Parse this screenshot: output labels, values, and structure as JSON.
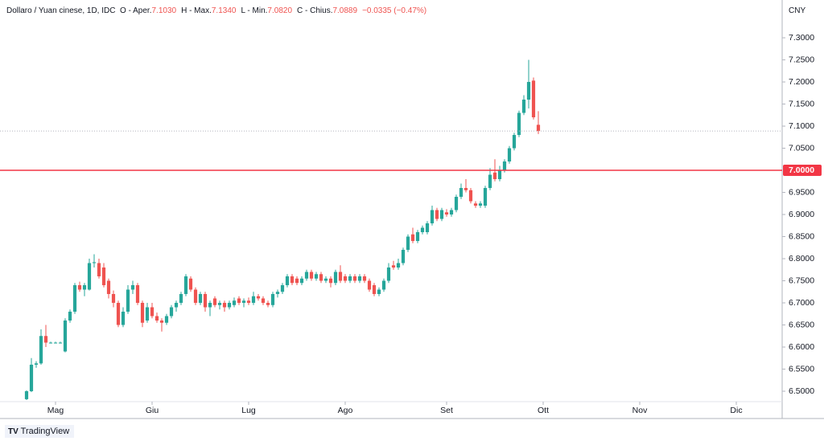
{
  "header": {
    "symbol": "Dollaro / Yuan cinese, 1D, IDC",
    "open_label": "O - Aper.",
    "open_value": "7.1030",
    "high_label": "H - Max.",
    "high_value": "7.1340",
    "low_label": "L - Min.",
    "low_value": "7.0820",
    "close_label": "C - Chius.",
    "close_value": "7.0889",
    "change": "−0.0335 (−0.47%)"
  },
  "currency": "CNY",
  "brand": "TradingView",
  "chart_data": {
    "type": "candlestick",
    "up_color": "#26a69a",
    "down_color": "#ef5350",
    "xlim": [
      -5.5,
      156.5
    ],
    "xticks": [
      {
        "value": 6,
        "label": "Mag"
      },
      {
        "value": 26,
        "label": "Giu"
      },
      {
        "value": 46,
        "label": "Lug"
      },
      {
        "value": 66,
        "label": "Ago"
      },
      {
        "value": 87,
        "label": "Set"
      },
      {
        "value": 107,
        "label": "Ott"
      },
      {
        "value": 127,
        "label": "Nov"
      },
      {
        "value": 147,
        "label": "Dic"
      }
    ],
    "ylim": [
      6.4764,
      7.3855
    ],
    "yticks": [
      {
        "value": 6.5,
        "label": "6.5000"
      },
      {
        "value": 6.55,
        "label": "6.5500"
      },
      {
        "value": 6.6,
        "label": "6.6000"
      },
      {
        "value": 6.65,
        "label": "6.6500"
      },
      {
        "value": 6.7,
        "label": "6.7000"
      },
      {
        "value": 6.75,
        "label": "6.7500"
      },
      {
        "value": 6.8,
        "label": "6.8000"
      },
      {
        "value": 6.85,
        "label": "6.8500"
      },
      {
        "value": 6.9,
        "label": "6.9000"
      },
      {
        "value": 6.95,
        "label": "6.9500"
      },
      {
        "value": 7.05,
        "label": "7.0500"
      },
      {
        "value": 7.1,
        "label": "7.1000"
      },
      {
        "value": 7.15,
        "label": "7.1500"
      },
      {
        "value": 7.2,
        "label": "7.2000"
      },
      {
        "value": 7.25,
        "label": "7.2500"
      },
      {
        "value": 7.3,
        "label": "7.3000"
      }
    ],
    "hline": {
      "value": 7.0,
      "label": "7.0000",
      "color": "#f23645"
    },
    "open": [
      6.482,
      6.5,
      6.56,
      6.563,
      6.625,
      6.61,
      6.61,
      6.61,
      6.59,
      6.66,
      6.68,
      6.74,
      6.73,
      6.73,
      6.79,
      6.79,
      6.78,
      6.75,
      6.72,
      6.7,
      6.65,
      6.68,
      6.73,
      6.74,
      6.7,
      6.66,
      6.69,
      6.67,
      6.66,
      6.655,
      6.67,
      6.69,
      6.7,
      6.72,
      6.755,
      6.73,
      6.7,
      6.72,
      6.69,
      6.71,
      6.695,
      6.7,
      6.69,
      6.695,
      6.71,
      6.7,
      6.705,
      6.7,
      6.715,
      6.71,
      6.7,
      6.695,
      6.72,
      6.725,
      6.74,
      6.76,
      6.755,
      6.745,
      6.755,
      6.77,
      6.755,
      6.765,
      6.75,
      6.755,
      6.745,
      6.77,
      6.76,
      6.75,
      6.76,
      6.75,
      6.76,
      6.75,
      6.74,
      6.72,
      6.73,
      6.75,
      6.785,
      6.78,
      6.79,
      6.82,
      6.855,
      6.84,
      6.86,
      6.86,
      6.88,
      6.91,
      6.89,
      6.905,
      6.9,
      6.91,
      6.94,
      6.96,
      6.955,
      6.925,
      6.92,
      6.92,
      6.96,
      6.995,
      6.98,
      7.0,
      7.02,
      7.05,
      7.08,
      7.13,
      7.16,
      7.203,
      7.103
    ],
    "high": [
      6.502,
      6.575,
      6.568,
      6.64,
      6.65,
      6.612,
      6.612,
      6.612,
      6.665,
      6.685,
      6.745,
      6.748,
      6.745,
      6.8,
      6.81,
      6.8,
      6.79,
      6.755,
      6.728,
      6.705,
      6.69,
      6.74,
      6.75,
      6.745,
      6.705,
      6.7,
      6.7,
      6.678,
      6.665,
      6.675,
      6.695,
      6.705,
      6.725,
      6.765,
      6.76,
      6.735,
      6.725,
      6.725,
      6.705,
      6.715,
      6.705,
      6.705,
      6.705,
      6.712,
      6.715,
      6.71,
      6.712,
      6.725,
      6.72,
      6.715,
      6.705,
      6.725,
      6.73,
      6.745,
      6.765,
      6.765,
      6.76,
      6.76,
      6.775,
      6.775,
      6.77,
      6.77,
      6.76,
      6.76,
      6.775,
      6.785,
      6.765,
      6.765,
      6.765,
      6.765,
      6.765,
      6.755,
      6.745,
      6.735,
      6.755,
      6.79,
      6.795,
      6.8,
      6.825,
      6.855,
      6.87,
      6.865,
      6.875,
      6.885,
      6.92,
      6.915,
      6.915,
      6.912,
      6.915,
      6.945,
      6.97,
      6.98,
      6.96,
      6.93,
      6.93,
      6.965,
      7.005,
      7.025,
      7.01,
      7.025,
      7.055,
      7.085,
      7.135,
      7.17,
      7.25,
      7.21,
      7.134
    ],
    "low": [
      6.48,
      6.498,
      6.553,
      6.56,
      6.6,
      6.608,
      6.608,
      6.608,
      6.588,
      6.655,
      6.675,
      6.725,
      6.715,
      6.728,
      6.78,
      6.755,
      6.735,
      6.71,
      6.69,
      6.645,
      6.645,
      6.675,
      6.72,
      6.695,
      6.645,
      6.655,
      6.665,
      6.655,
      6.635,
      6.65,
      6.665,
      6.68,
      6.695,
      6.715,
      6.725,
      6.695,
      6.695,
      6.68,
      6.67,
      6.69,
      6.685,
      6.68,
      6.685,
      6.69,
      6.695,
      6.69,
      6.695,
      6.695,
      6.705,
      6.695,
      6.69,
      6.69,
      6.712,
      6.72,
      6.735,
      6.74,
      6.74,
      6.74,
      6.75,
      6.75,
      6.75,
      6.745,
      6.745,
      6.735,
      6.74,
      6.745,
      6.745,
      6.745,
      6.745,
      6.745,
      6.745,
      6.725,
      6.715,
      6.715,
      6.725,
      6.745,
      6.775,
      6.775,
      6.785,
      6.815,
      6.835,
      6.835,
      6.855,
      6.855,
      6.875,
      6.885,
      6.885,
      6.895,
      6.895,
      6.905,
      6.935,
      6.95,
      6.925,
      6.915,
      6.915,
      6.915,
      6.955,
      6.975,
      6.975,
      6.995,
      7.015,
      7.045,
      7.075,
      7.125,
      7.14,
      7.115,
      7.082
    ],
    "close": [
      6.5,
      6.56,
      6.563,
      6.625,
      6.61,
      6.61,
      6.61,
      6.61,
      6.66,
      6.68,
      6.74,
      6.73,
      6.74,
      6.79,
      6.792,
      6.76,
      6.74,
      6.72,
      6.7,
      6.65,
      6.68,
      6.73,
      6.74,
      6.7,
      6.655,
      6.69,
      6.67,
      6.66,
      6.655,
      6.67,
      6.69,
      6.7,
      6.72,
      6.76,
      6.73,
      6.7,
      6.72,
      6.69,
      6.7,
      6.695,
      6.7,
      6.69,
      6.7,
      6.705,
      6.7,
      6.705,
      6.7,
      6.715,
      6.71,
      6.7,
      6.695,
      6.72,
      6.725,
      6.74,
      6.76,
      6.745,
      6.745,
      6.755,
      6.77,
      6.755,
      6.765,
      6.75,
      6.755,
      6.745,
      6.77,
      6.75,
      6.75,
      6.76,
      6.75,
      6.76,
      6.75,
      6.73,
      6.72,
      6.73,
      6.75,
      6.78,
      6.78,
      6.79,
      6.82,
      6.85,
      6.84,
      6.86,
      6.87,
      6.88,
      6.91,
      6.89,
      6.91,
      6.9,
      6.91,
      6.94,
      6.96,
      6.955,
      6.93,
      6.92,
      6.925,
      6.96,
      6.99,
      6.98,
      7.0,
      7.02,
      7.05,
      7.08,
      7.13,
      7.16,
      7.2,
      7.12,
      7.0889
    ]
  }
}
